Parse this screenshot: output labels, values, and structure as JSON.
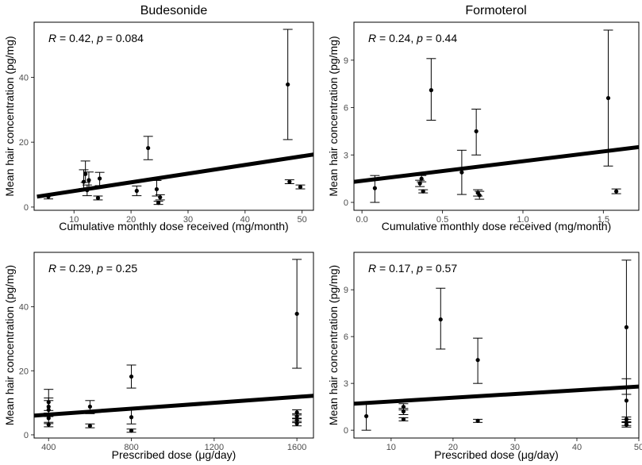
{
  "colors": {
    "ink": "#000000",
    "tick": "#4d4d4d",
    "frame": "#000000"
  },
  "chart_data": [
    {
      "type": "scatter",
      "title": "Budesonide",
      "xlabel": "Cumulative monthly dose received (mg/month)",
      "ylabel": "Mean hair concentration (pg/mg)",
      "stat": {
        "r_label": "R",
        "r_value": " = 0.42, ",
        "p_label": "p",
        "p_value": " = 0.084"
      },
      "xlim": [
        3,
        52
      ],
      "ylim": [
        -1,
        57
      ],
      "xticks": [
        10,
        20,
        30,
        40,
        50
      ],
      "yticks": [
        0,
        20,
        40
      ],
      "points": [
        {
          "x": 5.5,
          "y": 3.2,
          "lo": 2.5,
          "hi": 3.9
        },
        {
          "x": 11.7,
          "y": 7.8,
          "lo": 5.7,
          "hi": 11.5
        },
        {
          "x": 12.0,
          "y": 10.2,
          "lo": 7.6,
          "hi": 14.2
        },
        {
          "x": 12.3,
          "y": 5.2,
          "lo": 3.5,
          "hi": 6.8
        },
        {
          "x": 12.6,
          "y": 8.3,
          "lo": 5.9,
          "hi": 10.8
        },
        {
          "x": 14.2,
          "y": 2.8,
          "lo": 2.2,
          "hi": 3.4
        },
        {
          "x": 14.5,
          "y": 8.8,
          "lo": 6.6,
          "hi": 10.7
        },
        {
          "x": 21.0,
          "y": 5.0,
          "lo": 3.5,
          "hi": 6.5
        },
        {
          "x": 23.0,
          "y": 18.2,
          "lo": 14.6,
          "hi": 21.8
        },
        {
          "x": 24.5,
          "y": 5.5,
          "lo": 3.4,
          "hi": 8.2
        },
        {
          "x": 24.8,
          "y": 1.3,
          "lo": 0.8,
          "hi": 1.8
        },
        {
          "x": 25.1,
          "y": 3.0,
          "lo": 2.2,
          "hi": 3.8
        },
        {
          "x": 47.5,
          "y": 37.8,
          "lo": 20.8,
          "hi": 54.8
        },
        {
          "x": 47.8,
          "y": 7.8,
          "lo": 7.2,
          "hi": 8.4
        },
        {
          "x": 49.7,
          "y": 6.2,
          "lo": 5.6,
          "hi": 6.8
        }
      ],
      "trend": {
        "x0": 3.5,
        "y0": 3.2,
        "x1": 52,
        "y1": 16.2
      }
    },
    {
      "type": "scatter",
      "title": "Formoterol",
      "xlabel": "Cumulative monthly dose received (mg/month)",
      "ylabel": "Mean hair concentration (pg/mg)",
      "stat": {
        "r_label": "R",
        "r_value": " = 0.24, ",
        "p_label": "p",
        "p_value": " = 0.44"
      },
      "xlim": [
        -0.05,
        1.72
      ],
      "ylim": [
        -0.5,
        11.4
      ],
      "xticks": [
        0.0,
        0.5,
        1.0,
        1.5
      ],
      "xtick_labels": [
        "0.0",
        "0.5",
        "1.0",
        "1.5"
      ],
      "yticks": [
        0,
        3,
        6,
        9
      ],
      "points": [
        {
          "x": 0.08,
          "y": 0.9,
          "lo": 0.0,
          "hi": 1.7
        },
        {
          "x": 0.36,
          "y": 1.2,
          "lo": 1.0,
          "hi": 1.4
        },
        {
          "x": 0.37,
          "y": 1.5,
          "lo": 1.3,
          "hi": 1.7
        },
        {
          "x": 0.38,
          "y": 0.7,
          "lo": 0.6,
          "hi": 0.8
        },
        {
          "x": 0.43,
          "y": 7.1,
          "lo": 5.2,
          "hi": 9.1
        },
        {
          "x": 0.62,
          "y": 1.9,
          "lo": 0.5,
          "hi": 3.3
        },
        {
          "x": 0.71,
          "y": 4.5,
          "lo": 3.0,
          "hi": 5.9
        },
        {
          "x": 0.72,
          "y": 0.6,
          "lo": 0.4,
          "hi": 0.8
        },
        {
          "x": 0.73,
          "y": 0.45,
          "lo": 0.2,
          "hi": 0.7
        },
        {
          "x": 1.53,
          "y": 6.6,
          "lo": 2.3,
          "hi": 10.9
        },
        {
          "x": 1.58,
          "y": 0.7,
          "lo": 0.55,
          "hi": 0.85
        }
      ],
      "trend": {
        "x0": -0.05,
        "y0": 1.3,
        "x1": 1.72,
        "y1": 3.5
      }
    },
    {
      "type": "scatter",
      "title": "",
      "xlabel": "Prescribed dose (μg/day)",
      "ylabel": "Mean hair concentration (pg/mg)",
      "stat": {
        "r_label": "R",
        "r_value": " = 0.29, ",
        "p_label": "p",
        "p_value": " = 0.25"
      },
      "xlim": [
        330,
        1680
      ],
      "ylim": [
        -1,
        57
      ],
      "xticks": [
        400,
        800,
        1200,
        1600
      ],
      "yticks": [
        0,
        20,
        40
      ],
      "points": [
        {
          "x": 400,
          "y": 10.2,
          "lo": 7.6,
          "hi": 14.2
        },
        {
          "x": 400,
          "y": 7.8,
          "lo": 5.7,
          "hi": 11.5
        },
        {
          "x": 400,
          "y": 5.2,
          "lo": 3.5,
          "hi": 6.8
        },
        {
          "x": 400,
          "y": 3.2,
          "lo": 2.5,
          "hi": 3.9
        },
        {
          "x": 400,
          "y": 8.8,
          "lo": 6.6,
          "hi": 10.7
        },
        {
          "x": 600,
          "y": 8.8,
          "lo": 6.6,
          "hi": 10.7
        },
        {
          "x": 600,
          "y": 2.8,
          "lo": 2.2,
          "hi": 3.4
        },
        {
          "x": 800,
          "y": 18.2,
          "lo": 14.6,
          "hi": 21.8
        },
        {
          "x": 800,
          "y": 5.5,
          "lo": 3.4,
          "hi": 8.2
        },
        {
          "x": 800,
          "y": 1.3,
          "lo": 0.8,
          "hi": 1.8
        },
        {
          "x": 1600,
          "y": 37.8,
          "lo": 20.8,
          "hi": 54.8
        },
        {
          "x": 1600,
          "y": 7.0,
          "lo": 6.2,
          "hi": 7.8
        },
        {
          "x": 1600,
          "y": 5.8,
          "lo": 5.0,
          "hi": 6.6
        },
        {
          "x": 1600,
          "y": 4.5,
          "lo": 3.8,
          "hi": 5.2
        },
        {
          "x": 1600,
          "y": 3.5,
          "lo": 2.8,
          "hi": 4.2
        }
      ],
      "trend": {
        "x0": 330,
        "y0": 6.0,
        "x1": 1680,
        "y1": 12.2
      }
    },
    {
      "type": "scatter",
      "title": "",
      "xlabel": "Prescribed dose (μg/day)",
      "ylabel": "Mean hair concentration (pg/mg)",
      "stat": {
        "r_label": "R",
        "r_value": " = 0.17, ",
        "p_label": "p",
        "p_value": " = 0.57"
      },
      "xlim": [
        4,
        50
      ],
      "ylim": [
        -0.5,
        11.4
      ],
      "xticks": [
        10,
        20,
        30,
        40,
        50
      ],
      "yticks": [
        0,
        3,
        6,
        9
      ],
      "points": [
        {
          "x": 6,
          "y": 0.9,
          "lo": 0.0,
          "hi": 1.7
        },
        {
          "x": 12,
          "y": 1.5,
          "lo": 1.3,
          "hi": 1.7
        },
        {
          "x": 12,
          "y": 1.2,
          "lo": 1.0,
          "hi": 1.4
        },
        {
          "x": 12,
          "y": 0.7,
          "lo": 0.6,
          "hi": 0.8
        },
        {
          "x": 18,
          "y": 7.1,
          "lo": 5.2,
          "hi": 9.1
        },
        {
          "x": 24,
          "y": 4.5,
          "lo": 3.0,
          "hi": 5.9
        },
        {
          "x": 24,
          "y": 0.6,
          "lo": 0.5,
          "hi": 0.7
        },
        {
          "x": 48,
          "y": 6.6,
          "lo": 2.3,
          "hi": 10.9
        },
        {
          "x": 48,
          "y": 1.9,
          "lo": 0.5,
          "hi": 3.3
        },
        {
          "x": 48,
          "y": 0.7,
          "lo": 0.55,
          "hi": 0.85
        },
        {
          "x": 48,
          "y": 0.5,
          "lo": 0.3,
          "hi": 0.7
        },
        {
          "x": 48,
          "y": 0.35,
          "lo": 0.2,
          "hi": 0.5
        }
      ],
      "trend": {
        "x0": 4,
        "y0": 1.7,
        "x1": 50,
        "y1": 2.8
      }
    }
  ]
}
